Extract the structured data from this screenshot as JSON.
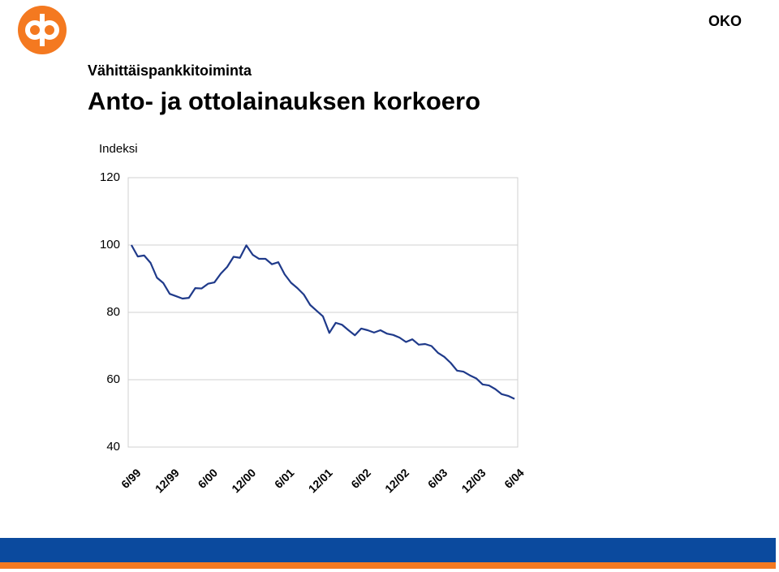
{
  "brand": "OKO",
  "chart_data": {
    "type": "line",
    "subtitle": "Vähittäispankkitoiminta",
    "title": "Anto- ja ottolainauksen korkoero",
    "y_label": "Indeksi",
    "categories": [
      "6/99",
      null,
      null,
      null,
      null,
      null,
      "12/99",
      null,
      null,
      null,
      null,
      null,
      "6/00",
      null,
      null,
      null,
      null,
      null,
      "12/00",
      null,
      null,
      null,
      null,
      null,
      "6/01",
      null,
      null,
      null,
      null,
      null,
      "12/01",
      null,
      null,
      null,
      null,
      null,
      "6/02",
      null,
      null,
      null,
      null,
      null,
      "12/02",
      null,
      null,
      null,
      null,
      null,
      "6/03",
      null,
      null,
      null,
      null,
      null,
      "12/03",
      null,
      null,
      null,
      null,
      null,
      "6/04"
    ],
    "series": [
      {
        "name": "Indeksi",
        "color": "#1f3a8a",
        "values": [
          100,
          96.6,
          96.9,
          94.7,
          90.3,
          88.7,
          85.5,
          84.8,
          84.1,
          84.3,
          87.2,
          87.1,
          88.5,
          88.9,
          91.5,
          93.5,
          96.5,
          96.2,
          99.9,
          97.1,
          95.9,
          95.9,
          94.3,
          94.9,
          91.3,
          88.8,
          87.2,
          85.3,
          82.2,
          80.5,
          78.8,
          73.9,
          76.9,
          76.3,
          74.7,
          73.2,
          75.2,
          74.7,
          74.0,
          74.7,
          73.7,
          73.3,
          72.5,
          71.2,
          72.0,
          70.4,
          70.6,
          70.0,
          68.0,
          66.8,
          65.0,
          62.7,
          62.4,
          61.3,
          60.4,
          58.6,
          58.3,
          57.2,
          55.7,
          55.2,
          54.3
        ]
      }
    ],
    "ylim": [
      40,
      120
    ],
    "yticks": [
      40,
      60,
      80,
      100,
      120
    ],
    "grid": true
  }
}
